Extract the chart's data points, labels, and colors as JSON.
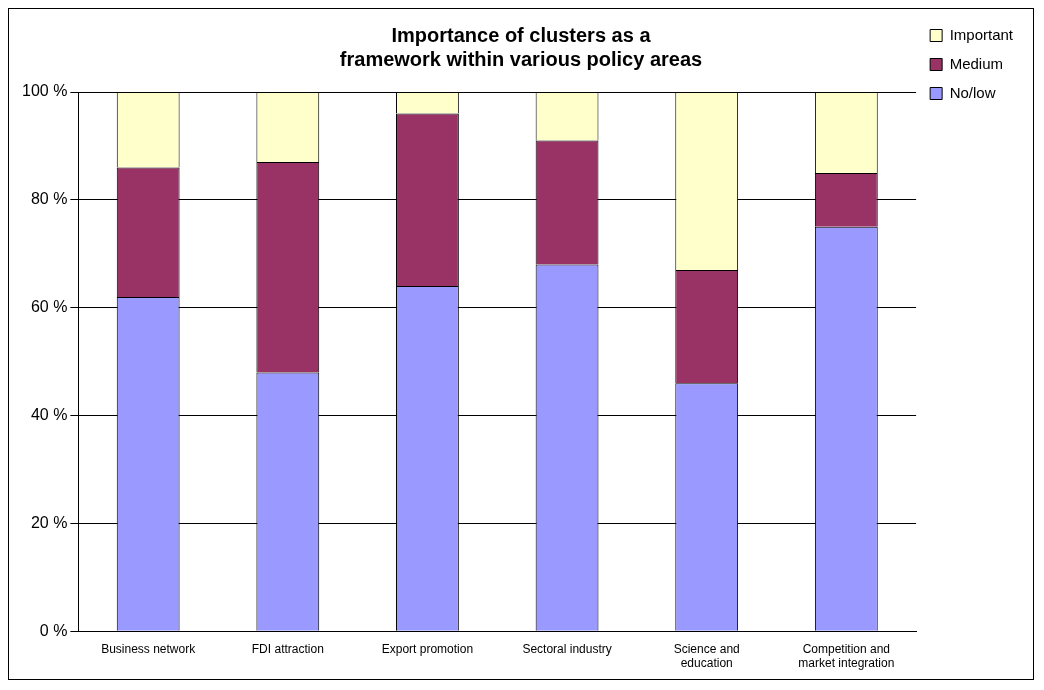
{
  "chart_data": {
    "type": "bar",
    "title": "Importance of clusters as a framework within various policy areas",
    "categories": [
      "Business network",
      "FDI attraction",
      "Export promotion",
      "Sectoral industry",
      "Science and education",
      "Competition and market integration"
    ],
    "series": [
      {
        "name": "No/low",
        "color": "#9999ff",
        "values": [
          62,
          48,
          64,
          68,
          46,
          75
        ]
      },
      {
        "name": "Medium",
        "color": "#993366",
        "values": [
          24,
          39,
          32,
          23,
          21,
          10
        ]
      },
      {
        "name": "Important",
        "color": "#ffffcc",
        "values": [
          14,
          13,
          4,
          9,
          33,
          15
        ]
      }
    ],
    "stacked": true,
    "ylim": [
      0,
      100
    ],
    "yticks": [
      {
        "value": 0,
        "label": "0 %"
      },
      {
        "value": 20,
        "label": "20 %"
      },
      {
        "value": 40,
        "label": "40 %"
      },
      {
        "value": 60,
        "label": "60 %"
      },
      {
        "value": 80,
        "label": "80 %"
      },
      {
        "value": 100,
        "label": "100 %"
      }
    ],
    "grid": "y",
    "legend": "right"
  }
}
